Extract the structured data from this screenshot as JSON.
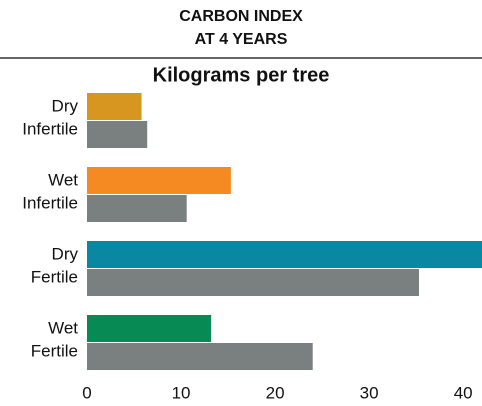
{
  "chart_data": {
    "type": "barh",
    "title": [
      "CARBON INDEX",
      "AT 4 YEARS"
    ],
    "subtitle": "Kilograms per tree",
    "categories": [
      [
        "Dry",
        "Infertile"
      ],
      [
        "Wet",
        "Infertile"
      ],
      [
        "Dry",
        "Fertile"
      ],
      [
        "Wet",
        "Fertile"
      ]
    ],
    "series": [
      {
        "colors": [
          "#d6961f",
          "#f58a23",
          "#0a87a1",
          "#088a55"
        ],
        "values": [
          5.8,
          15.3,
          42,
          13.2
        ]
      },
      {
        "colors": [
          "#7a7f7f",
          "#7a7f7f",
          "#7a7f7f",
          "#7a7f7f"
        ],
        "values": [
          6.4,
          10.6,
          35.3,
          24.0
        ]
      }
    ],
    "xlim": [
      0,
      42
    ],
    "xticks": [
      0,
      10,
      20,
      30,
      40
    ],
    "grid": false
  }
}
